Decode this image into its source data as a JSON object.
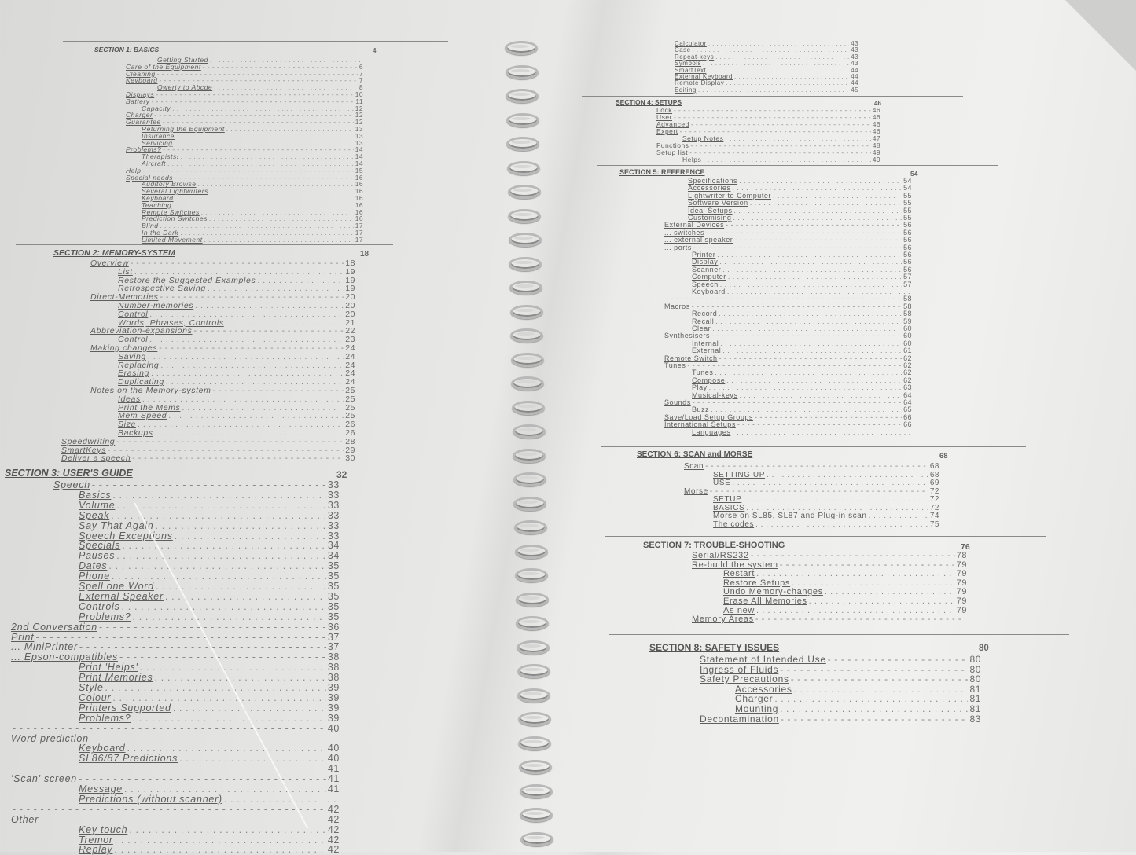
{
  "left_page": {
    "sections": [
      {
        "title": "SECTION 1: BASICS",
        "page": "4",
        "entries": [
          {
            "l": 3,
            "t": "Getting Started",
            "p": ""
          },
          {
            "l": 1,
            "t": "Care of the Equipment",
            "p": "6"
          },
          {
            "l": 1,
            "t": "Cleaning",
            "p": "7"
          },
          {
            "l": 1,
            "t": "Keyboard",
            "p": "7"
          },
          {
            "l": 3,
            "t": "Qwerty to Abcde",
            "p": "8"
          },
          {
            "l": 1,
            "t": "Displays",
            "p": "10"
          },
          {
            "l": 1,
            "t": "Battery",
            "p": "11"
          },
          {
            "l": 2,
            "t": "Capacity",
            "p": "12"
          },
          {
            "l": 1,
            "t": "Charger",
            "p": "12"
          },
          {
            "l": 1,
            "t": "Guarantee",
            "p": "12"
          },
          {
            "l": 2,
            "t": "Returning the Equipment",
            "p": "13"
          },
          {
            "l": 2,
            "t": "Insurance",
            "p": "13"
          },
          {
            "l": 2,
            "t": "Servicing",
            "p": "13"
          },
          {
            "l": 1,
            "t": "Problems?",
            "p": "14"
          },
          {
            "l": 2,
            "t": "Therapists!",
            "p": "14"
          },
          {
            "l": 2,
            "t": "Aircraft",
            "p": "14"
          },
          {
            "l": 1,
            "t": "Help",
            "p": "15"
          },
          {
            "l": 1,
            "t": "Special needs",
            "p": "16"
          },
          {
            "l": 2,
            "t": "Auditory Browse",
            "p": "16"
          },
          {
            "l": 2,
            "t": "Several Lightwriters",
            "p": "16"
          },
          {
            "l": 2,
            "t": "Keyboard",
            "p": "16"
          },
          {
            "l": 2,
            "t": "Teaching",
            "p": "16"
          },
          {
            "l": 2,
            "t": "Remote Switches",
            "p": "16"
          },
          {
            "l": 2,
            "t": "Prediction Switches",
            "p": "16"
          },
          {
            "l": 2,
            "t": "Blind",
            "p": "17"
          },
          {
            "l": 2,
            "t": "In the Dark",
            "p": "17"
          },
          {
            "l": 2,
            "t": "Limited Movement",
            "p": "17"
          }
        ]
      },
      {
        "title": "SECTION 2: MEMORY-SYSTEM",
        "page": "18",
        "entries": [
          {
            "l": 1,
            "t": "Overview",
            "p": "18"
          },
          {
            "l": 2,
            "t": "List",
            "p": "19"
          },
          {
            "l": 2,
            "t": "Restore the Suggested Examples",
            "p": "19"
          },
          {
            "l": 2,
            "t": "Retrospective Saving",
            "p": "19"
          },
          {
            "l": 1,
            "t": "Direct-Memories",
            "p": "20"
          },
          {
            "l": 2,
            "t": "Number-memories",
            "p": "20"
          },
          {
            "l": 2,
            "t": "Control",
            "p": "20"
          },
          {
            "l": 2,
            "t": "Words, Phrases, Controls",
            "p": "21"
          },
          {
            "l": 1,
            "t": "Abbreviation-expansions",
            "p": "22"
          },
          {
            "l": 2,
            "t": "Control",
            "p": "23"
          },
          {
            "l": 1,
            "t": "Making changes",
            "p": "24"
          },
          {
            "l": 2,
            "t": "Saving",
            "p": "24"
          },
          {
            "l": 2,
            "t": "Replacing",
            "p": "24"
          },
          {
            "l": 2,
            "t": "Erasing",
            "p": "24"
          },
          {
            "l": 2,
            "t": "Duplicating",
            "p": "24"
          },
          {
            "l": 1,
            "t": "Notes on the Memory-system",
            "p": "25"
          },
          {
            "l": 2,
            "t": "Ideas",
            "p": "25"
          },
          {
            "l": 2,
            "t": "Print the Mems",
            "p": "25"
          },
          {
            "l": 2,
            "t": "Mem Speed",
            "p": "25"
          },
          {
            "l": 2,
            "t": "Size",
            "p": "26"
          },
          {
            "l": 2,
            "t": "Backups",
            "p": "26"
          },
          {
            "l": 0,
            "t": "Speedwriting",
            "p": "28"
          },
          {
            "l": 0,
            "t": "SmartKeys",
            "p": "29"
          },
          {
            "l": 0,
            "t": "Deliver a speech",
            "p": "30"
          }
        ]
      },
      {
        "title": "SECTION 3: USER'S GUIDE",
        "page": "32",
        "entries": [
          {
            "l": 1,
            "t": "Speech",
            "p": "33"
          },
          {
            "l": 2,
            "t": "Basics",
            "p": "33"
          },
          {
            "l": 2,
            "t": "Volume",
            "p": "33"
          },
          {
            "l": 2,
            "t": "Speak",
            "p": "33"
          },
          {
            "l": 2,
            "t": "Say That Again",
            "p": "33"
          },
          {
            "l": 2,
            "t": "Speech Exceptions",
            "p": "33"
          },
          {
            "l": 2,
            "t": "Specials",
            "p": "34"
          },
          {
            "l": 2,
            "t": "Pauses",
            "p": "34"
          },
          {
            "l": 2,
            "t": "Dates",
            "p": "35"
          },
          {
            "l": 2,
            "t": "Phone",
            "p": "35"
          },
          {
            "l": 2,
            "t": "Spell one Word",
            "p": "35"
          },
          {
            "l": 2,
            "t": "External Speaker",
            "p": "35"
          },
          {
            "l": 2,
            "t": "Controls",
            "p": "35"
          },
          {
            "l": 2,
            "t": "Problems?",
            "p": "35"
          },
          {
            "l": 0,
            "t": "2nd Conversation",
            "p": "36"
          },
          {
            "l": 0,
            "t": "Print",
            "p": "37"
          },
          {
            "l": 0,
            "t": "... MiniPrinter",
            "p": "37"
          },
          {
            "l": 0,
            "t": "... Epson-compatibles",
            "p": "38"
          },
          {
            "l": 2,
            "t": "Print 'Helps'",
            "p": "38"
          },
          {
            "l": 2,
            "t": "Print Memories",
            "p": "38"
          },
          {
            "l": 2,
            "t": "Style",
            "p": "39"
          },
          {
            "l": 2,
            "t": "Colour",
            "p": "39"
          },
          {
            "l": 2,
            "t": "Printers Supported",
            "p": "39"
          },
          {
            "l": 2,
            "t": "Problems?",
            "p": "39"
          },
          {
            "l": 0,
            "t": "",
            "p": "40"
          },
          {
            "l": 0,
            "t": "Word prediction",
            "p": ""
          },
          {
            "l": 2,
            "t": "Keyboard",
            "p": "40"
          },
          {
            "l": 2,
            "t": "SL86/87 Predictions",
            "p": "40"
          },
          {
            "l": 0,
            "t": "",
            "p": "41"
          },
          {
            "l": 0,
            "t": "'Scan' screen",
            "p": "41"
          },
          {
            "l": 2,
            "t": "Message",
            "p": "41"
          },
          {
            "l": 2,
            "t": "Predictions (without scanner)",
            "p": ""
          },
          {
            "l": 0,
            "t": "",
            "p": "42"
          },
          {
            "l": 0,
            "t": "Other",
            "p": "42"
          },
          {
            "l": 2,
            "t": "Key touch",
            "p": "42"
          },
          {
            "l": 2,
            "t": "Tremor",
            "p": "42"
          },
          {
            "l": 2,
            "t": "Replay",
            "p": "42"
          }
        ]
      }
    ]
  },
  "right_page": {
    "continuation": [
      {
        "l": 2,
        "t": "Calculator",
        "p": "43"
      },
      {
        "l": 2,
        "t": "Case",
        "p": "43"
      },
      {
        "l": 2,
        "t": "Repeat-keys",
        "p": "43"
      },
      {
        "l": 2,
        "t": "Symbols",
        "p": "43"
      },
      {
        "l": 2,
        "t": "SmartText",
        "p": "44"
      },
      {
        "l": 2,
        "t": "External Keyboard",
        "p": "44"
      },
      {
        "l": 2,
        "t": "Remote Display",
        "p": "44"
      },
      {
        "l": 2,
        "t": "Editing",
        "p": "45"
      }
    ],
    "sections": [
      {
        "title": "SECTION 4: SETUPS",
        "page": "46",
        "entries": [
          {
            "l": 1,
            "t": "Lock",
            "p": "46"
          },
          {
            "l": 1,
            "t": "User",
            "p": "46"
          },
          {
            "l": 1,
            "t": "Advanced",
            "p": "46"
          },
          {
            "l": 1,
            "t": "Expert",
            "p": "46"
          },
          {
            "l": 2,
            "t": "Setup Notes",
            "p": "47"
          },
          {
            "l": 1,
            "t": "Functions",
            "p": "48"
          },
          {
            "l": 1,
            "t": "Setup list",
            "p": "49"
          },
          {
            "l": 2,
            "t": "Helps",
            "p": "49"
          }
        ]
      },
      {
        "title": "SECTION 5: REFERENCE",
        "page": "54",
        "entries": [
          {
            "l": 3,
            "t": "Specifications",
            "p": "54"
          },
          {
            "l": 3,
            "t": "Accessories",
            "p": "54"
          },
          {
            "l": 3,
            "t": "Lightwriter to Computer",
            "p": "55"
          },
          {
            "l": 3,
            "t": "Software Version",
            "p": "55"
          },
          {
            "l": 3,
            "t": "Ideal Setups",
            "p": "55"
          },
          {
            "l": 3,
            "t": "Customising",
            "p": "55"
          },
          {
            "l": 1,
            "t": "External Devices",
            "p": "56"
          },
          {
            "l": 1,
            "t": "... switches",
            "p": "56"
          },
          {
            "l": 1,
            "t": "... external speaker",
            "p": "56"
          },
          {
            "l": 1,
            "t": "... ports",
            "p": "56"
          },
          {
            "l": 2,
            "t": "Printer",
            "p": "56"
          },
          {
            "l": 2,
            "t": "Display",
            "p": "56"
          },
          {
            "l": 2,
            "t": "Scanner",
            "p": "56"
          },
          {
            "l": 2,
            "t": "Computer",
            "p": "57"
          },
          {
            "l": 2,
            "t": "Speech",
            "p": "57"
          },
          {
            "l": 2,
            "t": "Keyboard",
            "p": ""
          },
          {
            "l": 1,
            "t": "",
            "p": "58"
          },
          {
            "l": 1,
            "t": "Macros",
            "p": "58"
          },
          {
            "l": 2,
            "t": "Record",
            "p": "58"
          },
          {
            "l": 2,
            "t": "Recall",
            "p": "59"
          },
          {
            "l": 2,
            "t": "Clear",
            "p": "60"
          },
          {
            "l": 1,
            "t": "Synthesisers",
            "p": "60"
          },
          {
            "l": 2,
            "t": "Internal",
            "p": "60"
          },
          {
            "l": 2,
            "t": "External",
            "p": "61"
          },
          {
            "l": 1,
            "t": "Remote Switch",
            "p": "62"
          },
          {
            "l": 1,
            "t": "Tunes",
            "p": "62"
          },
          {
            "l": 2,
            "t": "Tunes",
            "p": "62"
          },
          {
            "l": 2,
            "t": "Compose",
            "p": "62"
          },
          {
            "l": 2,
            "t": "Play",
            "p": "63"
          },
          {
            "l": 2,
            "t": "Musical-keys",
            "p": "64"
          },
          {
            "l": 1,
            "t": "Sounds",
            "p": "64"
          },
          {
            "l": 2,
            "t": "Buzz",
            "p": "65"
          },
          {
            "l": 1,
            "t": "Save/Load Setup Groups",
            "p": "66"
          },
          {
            "l": 1,
            "t": "International Setups",
            "p": "66"
          },
          {
            "l": 2,
            "t": "Languages",
            "p": ""
          }
        ]
      },
      {
        "title": "SECTION 6: SCAN and MORSE",
        "page": "68",
        "entries": [
          {
            "l": 1,
            "t": "Scan",
            "p": "68"
          },
          {
            "l": 2,
            "t": "SETTING UP",
            "p": "68"
          },
          {
            "l": 2,
            "t": "USE",
            "p": "69"
          },
          {
            "l": 1,
            "t": "Morse",
            "p": "72"
          },
          {
            "l": 2,
            "t": "SETUP",
            "p": "72"
          },
          {
            "l": 2,
            "t": "BASICS",
            "p": "72"
          },
          {
            "l": 2,
            "t": "Morse on SL85, SL87 and Plug-in scan",
            "p": "74"
          },
          {
            "l": 2,
            "t": "The codes",
            "p": "75"
          }
        ]
      },
      {
        "title": "SECTION 7: TROUBLE-SHOOTING",
        "page": "76",
        "entries": [
          {
            "l": 1,
            "t": "Serial/RS232",
            "p": "78"
          },
          {
            "l": 1,
            "t": "Re-build the system",
            "p": "79"
          },
          {
            "l": 2,
            "t": "Restart",
            "p": "79"
          },
          {
            "l": 2,
            "t": "Restore Setups",
            "p": "79"
          },
          {
            "l": 2,
            "t": "Undo Memory-changes",
            "p": "79"
          },
          {
            "l": 2,
            "t": "Erase All Memories",
            "p": "79"
          },
          {
            "l": 2,
            "t": "As new",
            "p": "79"
          },
          {
            "l": 1,
            "t": "Memory Areas",
            "p": ""
          }
        ]
      },
      {
        "title": "SECTION 8: SAFETY ISSUES",
        "page": "80",
        "entries": [
          {
            "l": 1,
            "t": "Statement of Intended Use",
            "p": "80"
          },
          {
            "l": 1,
            "t": "Ingress of Fluids",
            "p": "80"
          },
          {
            "l": 1,
            "t": "Safety Precautions",
            "p": "80"
          },
          {
            "l": 2,
            "t": "Accessories",
            "p": "81"
          },
          {
            "l": 2,
            "t": "Charger",
            "p": "81"
          },
          {
            "l": 2,
            "t": "Mounting",
            "p": "81"
          },
          {
            "l": 1,
            "t": "Decontamination",
            "p": "83"
          }
        ]
      }
    ]
  }
}
